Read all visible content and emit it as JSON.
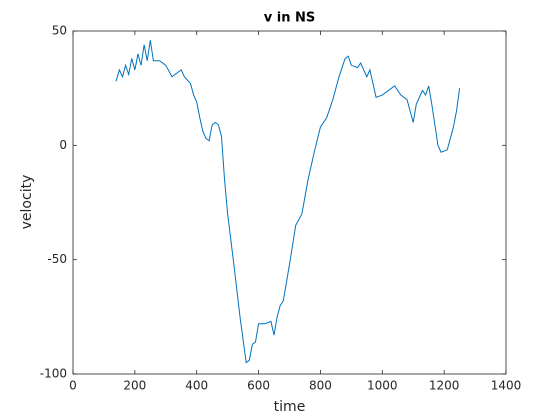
{
  "chart_data": {
    "type": "line",
    "title": "v in NS",
    "x_label": "time",
    "y_label": "velocity",
    "x": [
      139,
      150,
      160,
      170,
      180,
      190,
      200,
      210,
      220,
      230,
      240,
      250,
      260,
      280,
      300,
      320,
      340,
      350,
      360,
      380,
      390,
      400,
      410,
      420,
      430,
      440,
      450,
      460,
      470,
      480,
      490,
      500,
      520,
      540,
      555,
      560,
      570,
      580,
      590,
      600,
      620,
      640,
      650,
      660,
      670,
      680,
      700,
      720,
      740,
      760,
      780,
      800,
      820,
      840,
      860,
      880,
      890,
      900,
      920,
      930,
      950,
      960,
      980,
      1000,
      1040,
      1060,
      1080,
      1100,
      1110,
      1130,
      1140,
      1150,
      1160,
      1180,
      1190,
      1210,
      1230,
      1240,
      1250
    ],
    "values": [
      28,
      33,
      30,
      35,
      31,
      38,
      33,
      40,
      35,
      44,
      37,
      46,
      37,
      37,
      35,
      30,
      32,
      33,
      30,
      27,
      22,
      19,
      12,
      6,
      3,
      2,
      9,
      10,
      9,
      4,
      -15,
      -30,
      -52,
      -75,
      -90,
      -95,
      -94,
      -87,
      -86,
      -78,
      -78,
      -77,
      -83,
      -75,
      -70,
      -68,
      -52,
      -35,
      -30,
      -15,
      -3,
      8,
      12,
      20,
      30,
      38,
      39,
      35,
      34,
      36,
      30,
      33,
      21,
      22,
      26,
      22,
      20,
      10,
      18,
      24,
      22,
      26,
      18,
      0,
      -3,
      -2,
      8,
      15,
      25
    ],
    "color": "#0072bd",
    "xlim": [
      0,
      1400
    ],
    "xticks": [
      0,
      200,
      400,
      600,
      800,
      1000,
      1200,
      1400
    ],
    "ylim": [
      -100,
      50
    ],
    "yticks": [
      -100,
      -50,
      0,
      50
    ]
  }
}
